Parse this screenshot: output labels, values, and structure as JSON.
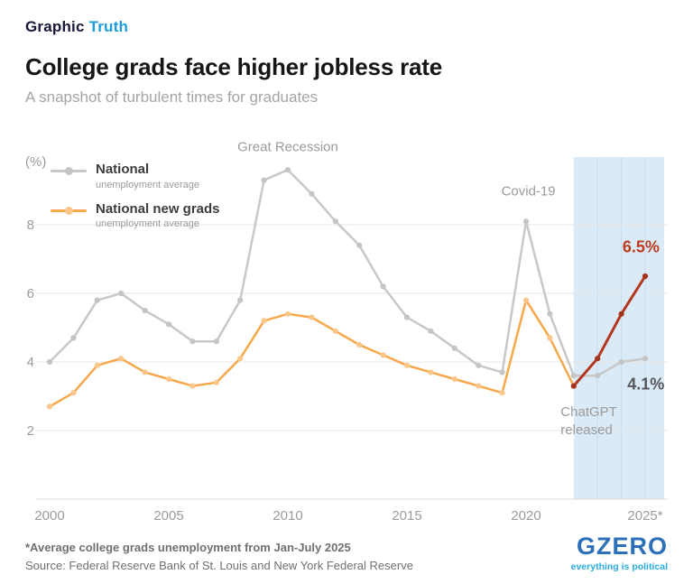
{
  "header": {
    "kicker_primary": "Graphic",
    "kicker_accent": "Truth",
    "title": "College grads face higher jobless rate",
    "subtitle": "A snapshot of turbulent times for graduates"
  },
  "legend": {
    "items": [
      {
        "title": "National",
        "subtitle": "unemployment average",
        "color": "#c8c8c8",
        "dot_color": "#c4c4c4"
      },
      {
        "title": "National new grads",
        "subtitle": "unemployment average",
        "color": "#f7a84a",
        "dot_color": "#fbc68a"
      }
    ]
  },
  "chart_data": {
    "type": "line",
    "title": "College grads face higher jobless rate",
    "subtitle": "A snapshot of turbulent times for graduates",
    "unit_label": "(%)",
    "grid": "horizontal",
    "legend_position": "top-left",
    "ylim": [
      0,
      10.5
    ],
    "yticks": [
      2,
      4,
      6,
      8
    ],
    "xticks": [
      {
        "value": 2000,
        "label": "2000"
      },
      {
        "value": 2005,
        "label": "2005"
      },
      {
        "value": 2010,
        "label": "2010"
      },
      {
        "value": 2015,
        "label": "2015"
      },
      {
        "value": 2020,
        "label": "2020"
      },
      {
        "value": 2025,
        "label": "2025*"
      }
    ],
    "x": [
      2000,
      2001,
      2002,
      2003,
      2004,
      2005,
      2006,
      2007,
      2008,
      2009,
      2010,
      2011,
      2012,
      2013,
      2014,
      2015,
      2016,
      2017,
      2018,
      2019,
      2020,
      2021,
      2022,
      2023,
      2024,
      2025
    ],
    "series": [
      {
        "name": "National unemployment average",
        "color": "#c8c8c8",
        "dot_color": "#c4c4c4",
        "line_width": 2.5,
        "values": [
          4.0,
          4.7,
          5.8,
          6.0,
          5.5,
          5.1,
          4.6,
          4.6,
          5.8,
          9.3,
          9.6,
          8.9,
          8.1,
          7.4,
          6.2,
          5.3,
          4.9,
          4.4,
          3.9,
          3.7,
          8.1,
          5.4,
          3.6,
          3.6,
          4.0,
          4.1
        ]
      },
      {
        "name": "National new grads unemployment average",
        "color": "#f7a84a",
        "dot_color": "#fbc68a",
        "line_width": 2.5,
        "values": [
          2.7,
          3.1,
          3.9,
          4.1,
          3.7,
          3.5,
          3.3,
          3.4,
          4.1,
          5.2,
          5.4,
          5.3,
          4.9,
          4.5,
          4.2,
          3.9,
          3.7,
          3.5,
          3.3,
          3.1,
          5.8,
          4.7,
          3.3,
          null,
          null,
          null
        ]
      },
      {
        "name": "National new grads 2022-2025 (highlighted)",
        "color": "#b2371e",
        "dot_color": "#a6331c",
        "line_width": 3,
        "values": [
          null,
          null,
          null,
          null,
          null,
          null,
          null,
          null,
          null,
          null,
          null,
          null,
          null,
          null,
          null,
          null,
          null,
          null,
          null,
          null,
          null,
          null,
          3.3,
          4.1,
          5.4,
          6.5
        ]
      }
    ],
    "highlight_band": {
      "from": 2022,
      "to": 2025.8,
      "color": "#daeaf6",
      "gridline_color": "#c6def0",
      "grid_years": [
        2023,
        2024,
        2025
      ]
    },
    "annotations": [
      {
        "text": "Great Recession",
        "x": 2010,
        "y": 10.15,
        "anchor": "middle",
        "color": "#9b9b9b",
        "size": 15,
        "weight": "normal"
      },
      {
        "text": "Covid-19",
        "x": 2020.1,
        "y": 8.85,
        "anchor": "middle",
        "color": "#9b9b9b",
        "size": 15,
        "weight": "normal"
      },
      {
        "text": "ChatGPT",
        "x": 2021.45,
        "y": 2.42,
        "anchor": "start",
        "color": "#9b9b9b",
        "size": 15,
        "weight": "normal"
      },
      {
        "text": "released",
        "x": 2021.45,
        "y": 1.9,
        "anchor": "start",
        "color": "#9b9b9b",
        "size": 15,
        "weight": "normal"
      },
      {
        "text": "6.5%",
        "x": 2024.05,
        "y": 7.2,
        "anchor": "start",
        "color": "#bf3a1d",
        "size": 18,
        "weight": "bold"
      },
      {
        "text": "4.1%",
        "x": 2024.25,
        "y": 3.2,
        "anchor": "start",
        "color": "#55565a",
        "size": 18,
        "weight": "bold"
      }
    ]
  },
  "footer": {
    "note": "*Average college grads unemployment from Jan-July 2025",
    "source": "Source: Federal Reserve Bank of St. Louis and New York Federal Reserve",
    "logo_text": "GZERO",
    "logo_tagline": "everything is political"
  },
  "colors": {
    "accent_cyan": "#1d9dd9",
    "logo_blue": "#2c70b7",
    "tagline_cyan": "#29abe2",
    "band_blue": "#daeaf6",
    "highlight_red": "#b2371e",
    "axis_gray": "#9b9b9b"
  }
}
